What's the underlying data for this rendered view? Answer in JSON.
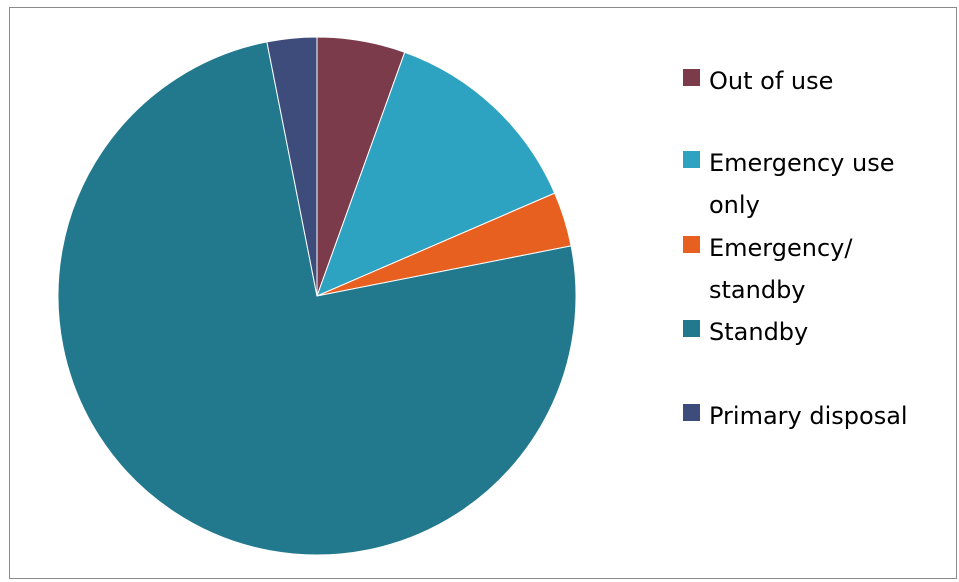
{
  "chart_data": {
    "type": "pie",
    "title": "",
    "start_angle_deg": 0,
    "direction": "clockwise",
    "legend_position": "right",
    "slices": [
      {
        "label": "Out of use",
        "value": 5.5,
        "color": "#7b3b4a"
      },
      {
        "label": "Emergency use only",
        "value": 13.0,
        "color": "#2ea3c1"
      },
      {
        "label": "Emergency/ standby",
        "value": 3.4,
        "color": "#e86020"
      },
      {
        "label": "Standby",
        "value": 75.0,
        "color": "#22788c"
      },
      {
        "label": "Primary disposal",
        "value": 3.1,
        "color": "#3d4c7a"
      }
    ]
  },
  "legend": {
    "items": [
      {
        "label": "Out of use",
        "color": "#7b3b4a"
      },
      {
        "label": "Emergency use only",
        "color": "#2ea3c1"
      },
      {
        "label": "Emergency/ standby",
        "color": "#e86020"
      },
      {
        "label": "Standby",
        "color": "#22788c"
      },
      {
        "label": "Primary disposal",
        "color": "#3d4c7a"
      }
    ]
  }
}
